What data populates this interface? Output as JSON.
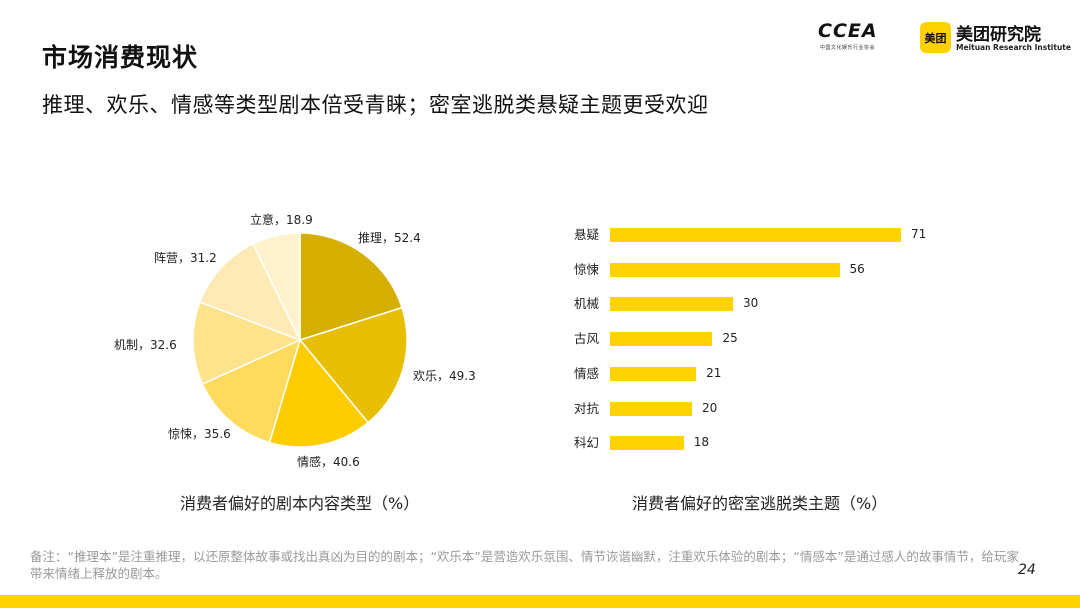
{
  "header": {
    "title": "市场消费现状",
    "subtitle": "推理、欢乐、情感等类型剧本倍受青睐；密室逃脱类悬疑主题更受欢迎"
  },
  "logos": {
    "ccea": {
      "text": "CCEA",
      "sub": "中国文化娱乐行业协会"
    },
    "meituan": {
      "badge": "美团",
      "name": "美团研究院",
      "en": "Meituan Research Institute"
    }
  },
  "chart_data": [
    {
      "type": "pie",
      "title": "消费者偏好的剧本内容类型（%）",
      "slices": [
        {
          "label": "推理",
          "value": 52.4,
          "display": "推理，52.4",
          "color": "#D4AF00"
        },
        {
          "label": "欢乐",
          "value": 49.3,
          "display": "欢乐，49.3",
          "color": "#E8BE00"
        },
        {
          "label": "情感",
          "value": 40.6,
          "display": "情感，40.6",
          "color": "#FFCC00"
        },
        {
          "label": "惊悚",
          "value": 35.6,
          "display": "惊悚，35.6",
          "color": "#FFDA5C"
        },
        {
          "label": "机制",
          "value": 32.6,
          "display": "机制，32.6",
          "color": "#FFE28C"
        },
        {
          "label": "阵营",
          "value": 31.2,
          "display": "阵营，31.2",
          "color": "#FFE9B5"
        },
        {
          "label": "立意",
          "value": 18.9,
          "display": "立意，18.9",
          "color": "#FFF2CC"
        }
      ]
    },
    {
      "type": "bar",
      "orientation": "horizontal",
      "title": "消费者偏好的密室逃脱类主题（%）",
      "categories": [
        "悬疑",
        "惊悚",
        "机械",
        "古风",
        "情感",
        "对抗",
        "科幻"
      ],
      "values": [
        71,
        56,
        30,
        25,
        21,
        20,
        18
      ],
      "color": "#FFD200"
    }
  ],
  "footnote": "备注：“推理本”是注重推理，以还原整体故事或找出真凶为目的的剧本；“欢乐本”是营造欢乐氛围、情节诙谐幽默，注重欢乐体验的剧本；“情感本”是通过感人的故事情节，给玩家带来情绪上释放的剧本。",
  "page_number": "24",
  "colors": {
    "accent": "#FFD200"
  }
}
